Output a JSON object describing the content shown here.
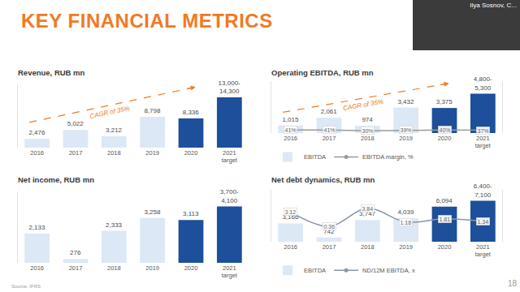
{
  "page": {
    "title": "KEY FINANCIAL METRICS",
    "speaker": "Ilya Sosnov, C...",
    "source": "Source: IFRS",
    "page_number": "18"
  },
  "chart_data": [
    {
      "type": "bar",
      "title": "Revenue, RUB mn",
      "categories": [
        "2016",
        "2017",
        "2018",
        "2019",
        "2020",
        "2021 target"
      ],
      "values": [
        2476,
        5022,
        3212,
        8798,
        8336,
        14300
      ],
      "value_labels": [
        "2,476",
        "5,022",
        "3,212",
        "8,798",
        "8,336",
        "13,000-14,300"
      ],
      "colors": [
        "#dce8f5",
        "#dce8f5",
        "#dce8f5",
        "#dce8f5",
        "#1d4f9a",
        "#1d4f9a"
      ],
      "data_labels": true,
      "annotations": [
        "CAGR of 35%"
      ],
      "ylim": [
        0,
        18000
      ],
      "yticks": [
        0
      ],
      "tick_labels": "x",
      "grid": false
    },
    {
      "type": "bar",
      "title": "Operating EBITDA, RUB mn",
      "categories": [
        "2016",
        "2017",
        "2018",
        "2019",
        "2020",
        "2021 target"
      ],
      "series": [
        {
          "name": "EBITDA",
          "type": "bar",
          "color": "#dce8f5",
          "colors": [
            "#dce8f5",
            "#dce8f5",
            "#dce8f5",
            "#dce8f5",
            "#1d4f9a",
            "#1d4f9a"
          ],
          "values": [
            1015,
            2061,
            974,
            3432,
            3375,
            5300
          ],
          "value_labels": [
            "1,015",
            "2,061",
            "974",
            "3,432",
            "3,375",
            "4,800-5,300"
          ]
        },
        {
          "name": "EBITDA margin, %",
          "type": "line",
          "axis": "y2",
          "color": "#9a9a9a",
          "marker": "circle",
          "values": [
            41,
            41,
            30,
            39,
            40,
            37
          ],
          "value_labels": [
            "41%",
            "41%",
            "30%",
            "39%",
            "40%",
            "37%"
          ]
        }
      ],
      "data_labels": true,
      "annotations": [
        "CAGR of 35%"
      ],
      "legend": "bottom",
      "ylim": [
        0,
        7000
      ],
      "yticks": [
        0
      ],
      "y2lim": [
        0,
        700
      ],
      "y2ticks": [
        0
      ],
      "tick_labels": "x",
      "grid": false
    },
    {
      "type": "bar",
      "title": "Net income, RUB mn",
      "categories": [
        "2016",
        "2017",
        "2018",
        "2019",
        "2020",
        "2021 target"
      ],
      "values": [
        2133,
        276,
        2333,
        3258,
        3113,
        4100
      ],
      "value_labels": [
        "2,133",
        "276",
        "2,333",
        "3,258",
        "3,113",
        "3,700-4,100"
      ],
      "colors": [
        "#dce8f5",
        "#dce8f5",
        "#dce8f5",
        "#dce8f5",
        "#1d4f9a",
        "#1d4f9a"
      ],
      "data_labels": true,
      "ylim": [
        0,
        5200
      ],
      "yticks": [
        0
      ],
      "tick_labels": "x",
      "grid": false
    },
    {
      "type": "bar",
      "title": "Net debt dynamics, RUB mn",
      "categories": [
        "2016",
        "2017",
        "2018",
        "2019",
        "2020",
        "2021 target"
      ],
      "series": [
        {
          "name": "EBITDA",
          "type": "bar",
          "color": "#dce8f5",
          "colors": [
            "#dce8f5",
            "#dce8f5",
            "#dce8f5",
            "#dce8f5",
            "#1d4f9a",
            "#1d4f9a"
          ],
          "values": [
            3166,
            742,
            3747,
            4039,
            6094,
            7100
          ],
          "value_labels": [
            "3,166",
            "742",
            "3,747",
            "4,039",
            "6,094",
            "6,400-7,100"
          ]
        },
        {
          "name": "ND/12M EBITDA, x",
          "type": "line",
          "axis": "y2",
          "color": "#8a97a8",
          "marker": "circle",
          "line_style": "spline",
          "values": [
            3.12,
            0.36,
            3.84,
            1.18,
            1.81,
            1.34
          ]
        }
      ],
      "data_labels": true,
      "legend": "bottom",
      "ylim": [
        0,
        9000
      ],
      "yticks": [
        0
      ],
      "y2lim": [
        -2.6,
        7.4
      ],
      "y2ticks": [
        0
      ],
      "tick_labels": "x",
      "grid": false
    }
  ]
}
